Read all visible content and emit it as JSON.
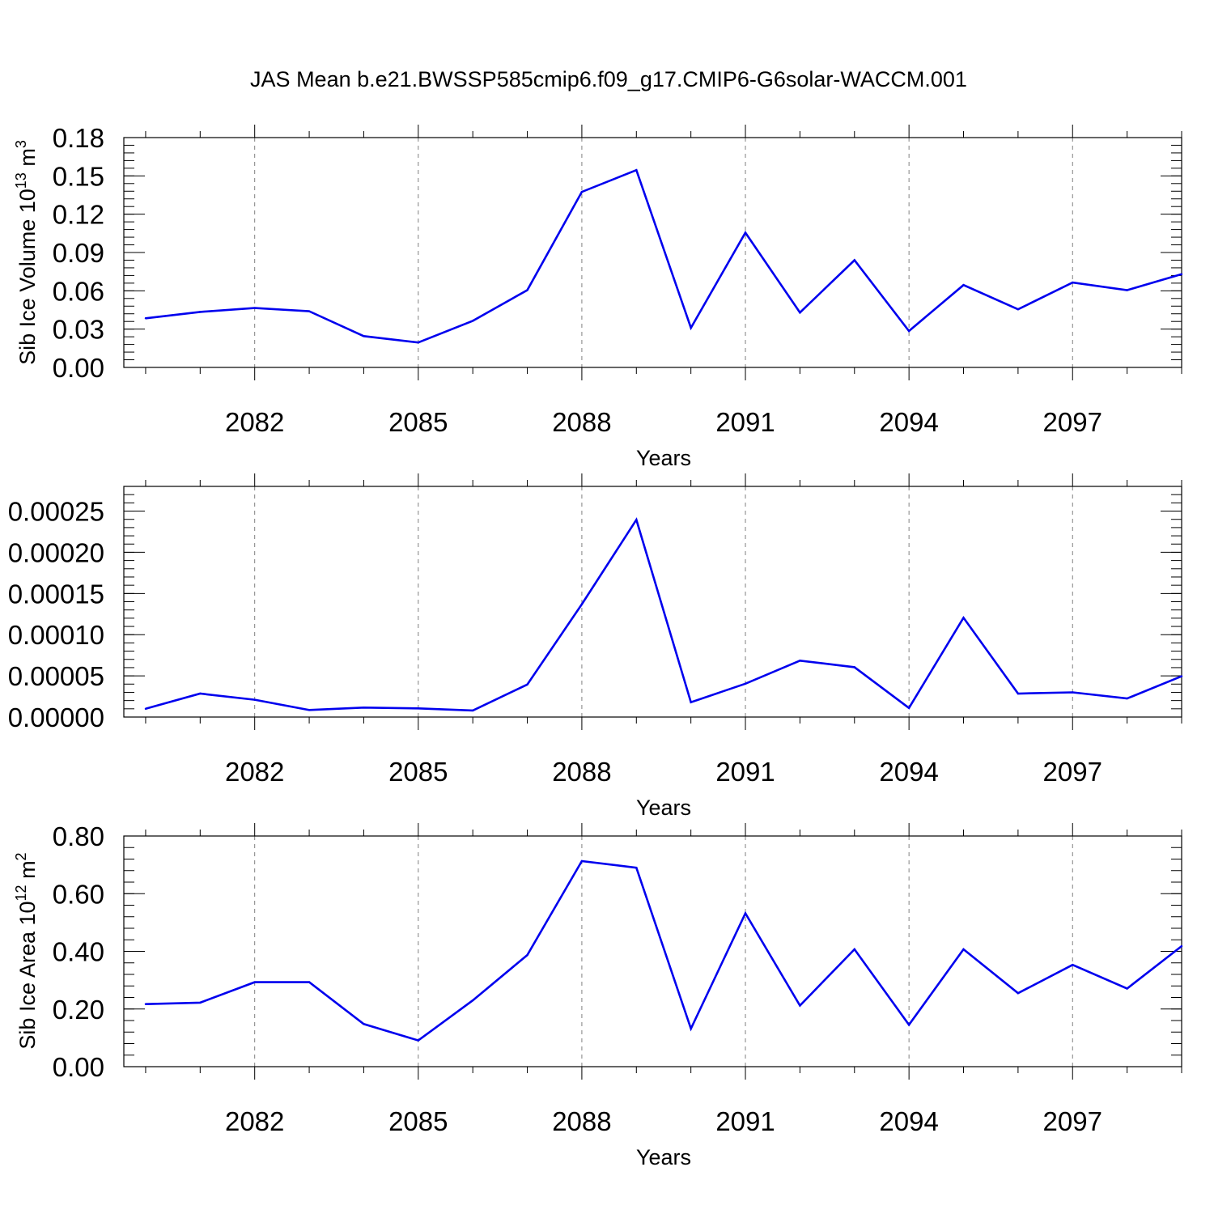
{
  "title": "JAS Mean b.e21.BWSSP585cmip6.f09_g17.CMIP6-G6solar-WACCM.001",
  "colors": {
    "line": "#0000ee",
    "axis": "#000000",
    "grid": "#808080"
  },
  "chart_data": [
    {
      "type": "line",
      "ylabel": "Sib Ice Volume 10",
      "ylabel_exp": "13",
      "ylabel_unit": " m",
      "ylabel_unit_exp": "3",
      "xlabel": "Years",
      "xlim": [
        2080,
        2099
      ],
      "ylim": [
        0,
        0.18
      ],
      "x_ticks": [
        "2082",
        "2085",
        "2088",
        "2091",
        "2094",
        "2097"
      ],
      "y_ticks": [
        "0.00",
        "0.03",
        "0.06",
        "0.09",
        "0.12",
        "0.15",
        "0.18"
      ],
      "grid": "vertical dashed at major x ticks",
      "x": [
        2080,
        2081,
        2082,
        2083,
        2084,
        2085,
        2086,
        2087,
        2088,
        2089,
        2090,
        2091,
        2092,
        2093,
        2094,
        2095,
        2096,
        2097,
        2098,
        2099
      ],
      "values": [
        0.0385,
        0.0435,
        0.0465,
        0.044,
        0.0245,
        0.0195,
        0.0365,
        0.0605,
        0.1375,
        0.1545,
        0.031,
        0.1055,
        0.043,
        0.084,
        0.0285,
        0.0645,
        0.0455,
        0.0665,
        0.0605,
        0.073
      ]
    },
    {
      "type": "line",
      "ylabel": "",
      "xlabel": "Years",
      "xlim": [
        2080,
        2099
      ],
      "ylim": [
        0,
        0.00028
      ],
      "x_ticks": [
        "2082",
        "2085",
        "2088",
        "2091",
        "2094",
        "2097"
      ],
      "y_ticks": [
        "0.00000",
        "0.00005",
        "0.00010",
        "0.00015",
        "0.00020",
        "0.00025"
      ],
      "grid": "vertical dashed at major x ticks",
      "x": [
        2080,
        2081,
        2082,
        2083,
        2084,
        2085,
        2086,
        2087,
        2088,
        2089,
        2090,
        2091,
        2092,
        2093,
        2094,
        2095,
        2096,
        2097,
        2098,
        2099
      ],
      "values": [
        1e-05,
        2.85e-05,
        2.1e-05,
        8.5e-06,
        1.15e-05,
        1.05e-05,
        8e-06,
        3.95e-05,
        0.000137,
        0.0002395,
        1.8e-05,
        4.05e-05,
        6.85e-05,
        6.05e-05,
        1.1e-05,
        0.0001205,
        2.85e-05,
        3e-05,
        2.25e-05,
        4.95e-05
      ]
    },
    {
      "type": "line",
      "ylabel": "Sib Ice Area 10",
      "ylabel_exp": "12",
      "ylabel_unit": " m",
      "ylabel_unit_exp": "2",
      "xlabel": "Years",
      "xlim": [
        2080,
        2099
      ],
      "ylim": [
        0,
        0.8
      ],
      "x_ticks": [
        "2082",
        "2085",
        "2088",
        "2091",
        "2094",
        "2097"
      ],
      "y_ticks": [
        "0.00",
        "0.20",
        "0.40",
        "0.60",
        "0.80"
      ],
      "grid": "vertical dashed at major x ticks",
      "x": [
        2080,
        2081,
        2082,
        2083,
        2084,
        2085,
        2086,
        2087,
        2088,
        2089,
        2090,
        2091,
        2092,
        2093,
        2094,
        2095,
        2096,
        2097,
        2098,
        2099
      ],
      "values": [
        0.217,
        0.222,
        0.293,
        0.293,
        0.148,
        0.091,
        0.23,
        0.387,
        0.713,
        0.69,
        0.132,
        0.532,
        0.212,
        0.407,
        0.145,
        0.407,
        0.255,
        0.353,
        0.271,
        0.418
      ]
    }
  ]
}
